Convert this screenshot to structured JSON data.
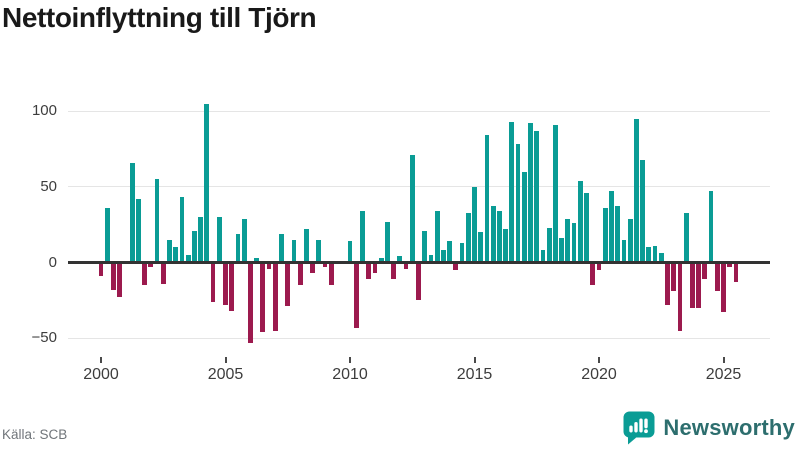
{
  "title": "Nettoinflyttning till Tjörn",
  "footer": {
    "source": "Källa: SCB",
    "brand": "Newsworthy",
    "brand_icon": "bar-chart-speech-bubble-icon"
  },
  "colors": {
    "positive_bar": "#0a9c95",
    "negative_bar": "#9c1a4e",
    "grid": "#e5e5e5",
    "zero_line": "#333333",
    "axis_text": "#3d3d3d",
    "title_text": "#191919",
    "source_text": "#70757a",
    "brand_text": "#2d6e6e",
    "background": "#ffffff"
  },
  "chart_data": {
    "type": "bar",
    "title": "Nettoinflyttning till Tjörn",
    "x_tick_labels": [
      "2000",
      "2005",
      "2010",
      "2015",
      "2020",
      "2025"
    ],
    "y_tick_labels": [
      100,
      50,
      0,
      -50
    ],
    "ylim": [
      -60,
      112
    ],
    "grid": "horizontal",
    "legend": "none",
    "start_quarter": "2000 Q1",
    "end_quarter": "2025 Q3",
    "quarters": [
      "2000 Q1",
      "2000 Q2",
      "2000 Q3",
      "2000 Q4",
      "2001 Q1",
      "2001 Q2",
      "2001 Q3",
      "2001 Q4",
      "2002 Q1",
      "2002 Q2",
      "2002 Q3",
      "2002 Q4",
      "2003 Q1",
      "2003 Q2",
      "2003 Q3",
      "2003 Q4",
      "2004 Q1",
      "2004 Q2",
      "2004 Q3",
      "2004 Q4",
      "2005 Q1",
      "2005 Q2",
      "2005 Q3",
      "2005 Q4",
      "2006 Q1",
      "2006 Q2",
      "2006 Q3",
      "2006 Q4",
      "2007 Q1",
      "2007 Q2",
      "2007 Q3",
      "2007 Q4",
      "2008 Q1",
      "2008 Q2",
      "2008 Q3",
      "2008 Q4",
      "2009 Q1",
      "2009 Q2",
      "2009 Q3",
      "2009 Q4",
      "2010 Q1",
      "2010 Q2",
      "2010 Q3",
      "2010 Q4",
      "2011 Q1",
      "2011 Q2",
      "2011 Q3",
      "2011 Q4",
      "2012 Q1",
      "2012 Q2",
      "2012 Q3",
      "2012 Q4",
      "2013 Q1",
      "2013 Q2",
      "2013 Q3",
      "2013 Q4",
      "2014 Q1",
      "2014 Q2",
      "2014 Q3",
      "2014 Q4",
      "2015 Q1",
      "2015 Q2",
      "2015 Q3",
      "2015 Q4",
      "2016 Q1",
      "2016 Q2",
      "2016 Q3",
      "2016 Q4",
      "2017 Q1",
      "2017 Q2",
      "2017 Q3",
      "2017 Q4",
      "2018 Q1",
      "2018 Q2",
      "2018 Q3",
      "2018 Q4",
      "2019 Q1",
      "2019 Q2",
      "2019 Q3",
      "2019 Q4",
      "2020 Q1",
      "2020 Q2",
      "2020 Q3",
      "2020 Q4",
      "2021 Q1",
      "2021 Q2",
      "2021 Q3",
      "2021 Q4",
      "2022 Q1",
      "2022 Q2",
      "2022 Q3",
      "2022 Q4",
      "2023 Q1",
      "2023 Q2",
      "2023 Q3",
      "2023 Q4",
      "2024 Q1",
      "2024 Q2",
      "2024 Q3",
      "2024 Q4",
      "2025 Q1",
      "2025 Q2",
      "2025 Q3"
    ],
    "values": [
      -9,
      36,
      -18,
      -23,
      0,
      66,
      42,
      -15,
      -3,
      55,
      -14,
      15,
      10,
      43,
      5,
      21,
      30,
      105,
      -26,
      30,
      -28,
      -32,
      19,
      29,
      -53,
      3,
      -46,
      -4,
      -45,
      19,
      -29,
      15,
      -15,
      22,
      -7,
      15,
      -3,
      -15,
      0,
      0,
      14,
      -43,
      34,
      -11,
      -7,
      3,
      27,
      -11,
      4,
      -4,
      71,
      -25,
      21,
      5,
      34,
      8,
      14,
      -5,
      13,
      33,
      50,
      20,
      84,
      37,
      34,
      22,
      93,
      78,
      60,
      92,
      87,
      8,
      23,
      91,
      16,
      29,
      26,
      54,
      46,
      -15,
      -5,
      36,
      47,
      37,
      15,
      29,
      95,
      68,
      10,
      11,
      6,
      -28,
      -19,
      -45,
      33,
      -30,
      -30,
      -11,
      47,
      -19,
      -33,
      -3,
      -13
    ]
  }
}
